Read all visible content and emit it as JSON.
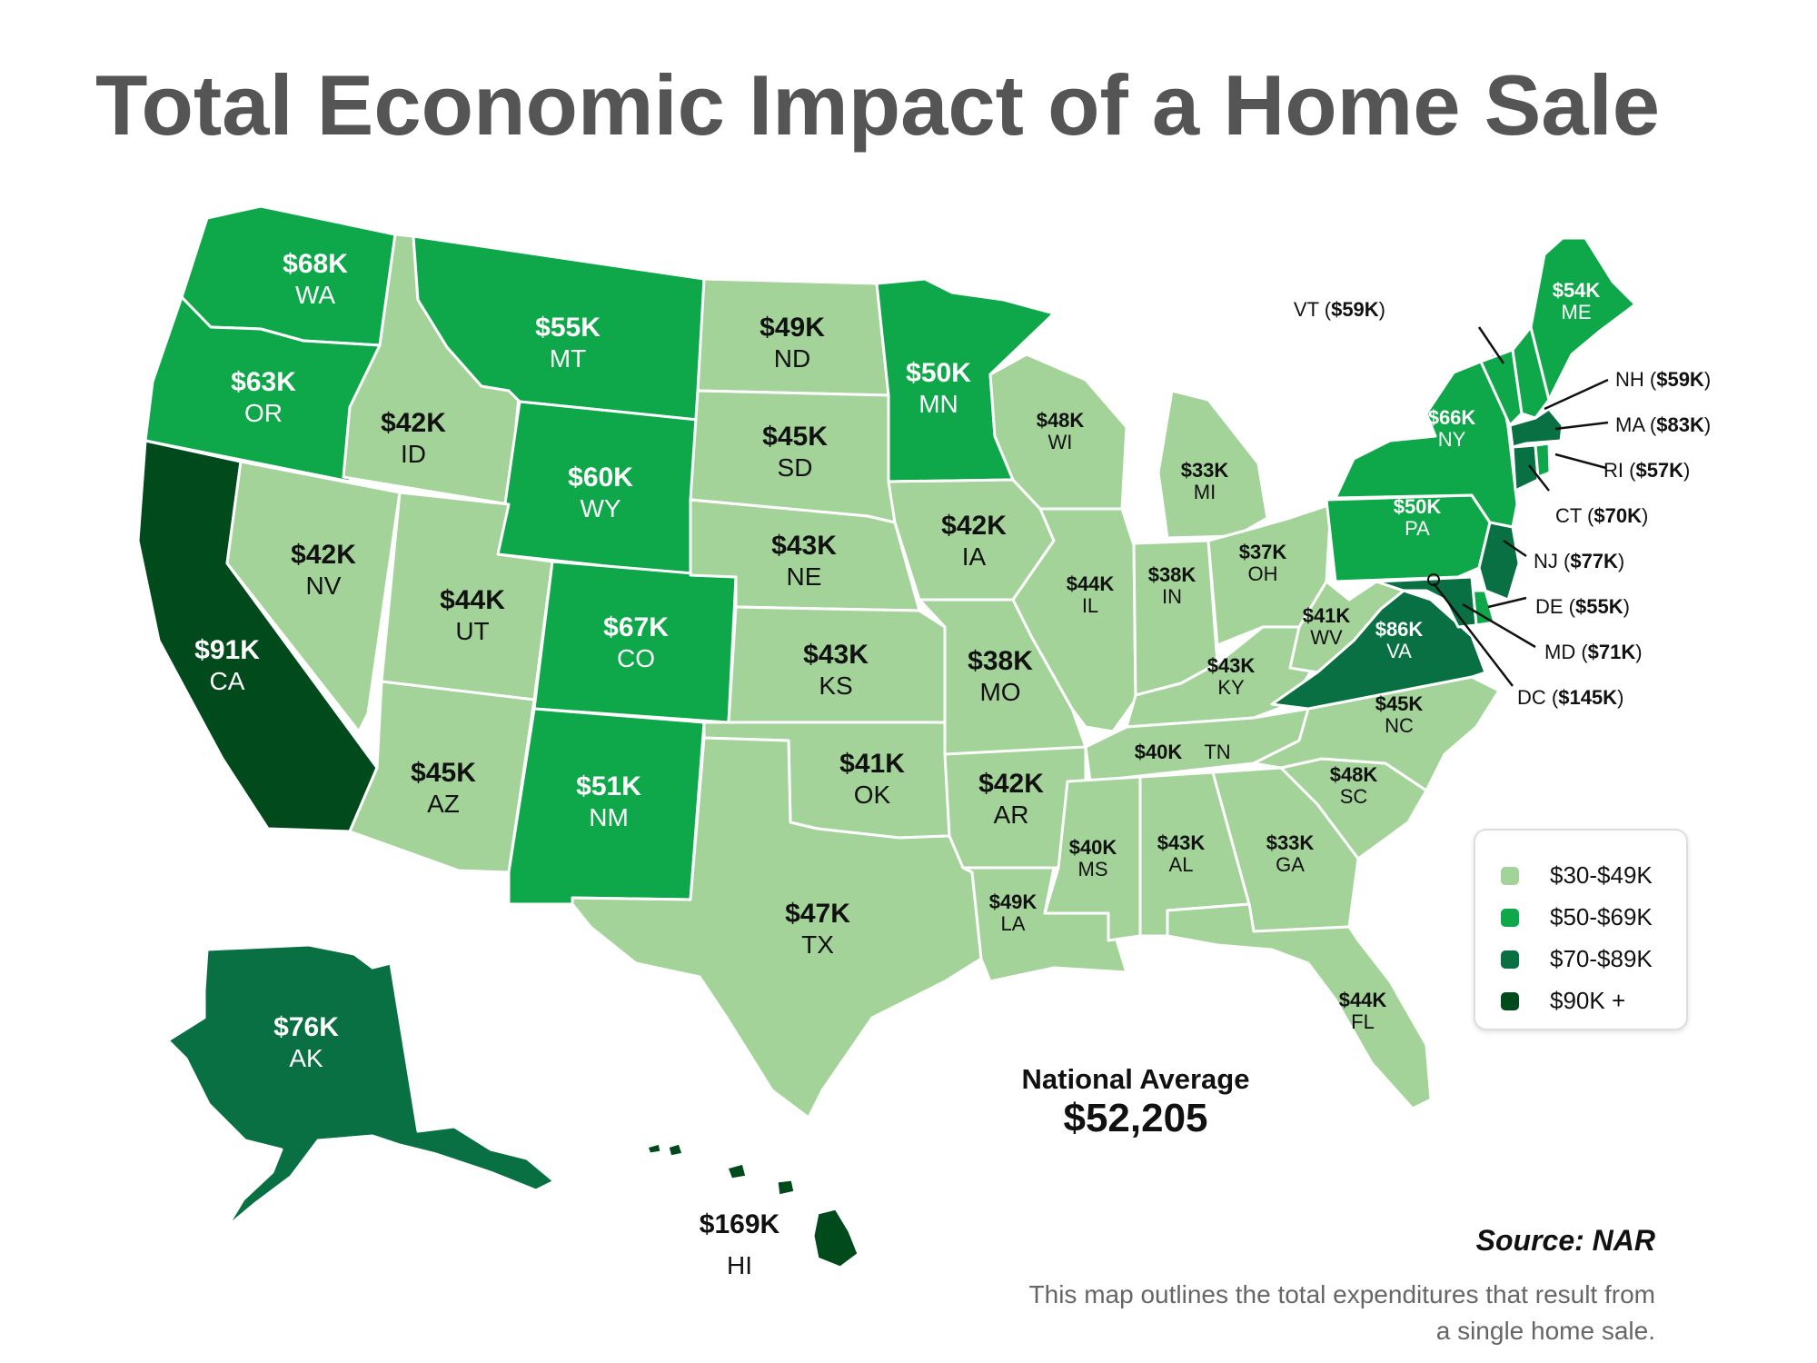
{
  "title": "Total Economic Impact of a Home Sale",
  "colors": {
    "tier1": "#a3d398",
    "tier2": "#0ea84a",
    "tier3": "#087042",
    "tier4": "#004a1c"
  },
  "states": [
    {
      "abbr": "WA",
      "value": "$68K",
      "tier": 2
    },
    {
      "abbr": "OR",
      "value": "$63K",
      "tier": 2
    },
    {
      "abbr": "CA",
      "value": "$91K",
      "tier": 4
    },
    {
      "abbr": "ID",
      "value": "$42K",
      "tier": 1
    },
    {
      "abbr": "NV",
      "value": "$42K",
      "tier": 1
    },
    {
      "abbr": "MT",
      "value": "$55K",
      "tier": 2
    },
    {
      "abbr": "WY",
      "value": "$60K",
      "tier": 2
    },
    {
      "abbr": "UT",
      "value": "$44K",
      "tier": 1
    },
    {
      "abbr": "AZ",
      "value": "$45K",
      "tier": 1
    },
    {
      "abbr": "CO",
      "value": "$67K",
      "tier": 2
    },
    {
      "abbr": "NM",
      "value": "$51K",
      "tier": 2
    },
    {
      "abbr": "ND",
      "value": "$49K",
      "tier": 1
    },
    {
      "abbr": "SD",
      "value": "$45K",
      "tier": 1
    },
    {
      "abbr": "NE",
      "value": "$43K",
      "tier": 1
    },
    {
      "abbr": "KS",
      "value": "$43K",
      "tier": 1
    },
    {
      "abbr": "OK",
      "value": "$41K",
      "tier": 1
    },
    {
      "abbr": "TX",
      "value": "$47K",
      "tier": 1
    },
    {
      "abbr": "MN",
      "value": "$50K",
      "tier": 2
    },
    {
      "abbr": "IA",
      "value": "$42K",
      "tier": 1
    },
    {
      "abbr": "MO",
      "value": "$38K",
      "tier": 1
    },
    {
      "abbr": "AR",
      "value": "$42K",
      "tier": 1
    },
    {
      "abbr": "LA",
      "value": "$49K",
      "tier": 1
    },
    {
      "abbr": "WI",
      "value": "$48K",
      "tier": 1
    },
    {
      "abbr": "IL",
      "value": "$44K",
      "tier": 1
    },
    {
      "abbr": "MI",
      "value": "$33K",
      "tier": 1
    },
    {
      "abbr": "IN",
      "value": "$38K",
      "tier": 1
    },
    {
      "abbr": "OH",
      "value": "$37K",
      "tier": 1
    },
    {
      "abbr": "KY",
      "value": "$43K",
      "tier": 1
    },
    {
      "abbr": "TN",
      "value": "$40K",
      "tier": 1
    },
    {
      "abbr": "MS",
      "value": "$40K",
      "tier": 1
    },
    {
      "abbr": "AL",
      "value": "$43K",
      "tier": 1
    },
    {
      "abbr": "GA",
      "value": "$33K",
      "tier": 1
    },
    {
      "abbr": "FL",
      "value": "$44K",
      "tier": 1
    },
    {
      "abbr": "SC",
      "value": "$48K",
      "tier": 1
    },
    {
      "abbr": "NC",
      "value": "$45K",
      "tier": 1
    },
    {
      "abbr": "VA",
      "value": "$86K",
      "tier": 3
    },
    {
      "abbr": "WV",
      "value": "$41K",
      "tier": 1
    },
    {
      "abbr": "PA",
      "value": "$50K",
      "tier": 2
    },
    {
      "abbr": "NY",
      "value": "$66K",
      "tier": 2
    },
    {
      "abbr": "ME",
      "value": "$54K",
      "tier": 2
    },
    {
      "abbr": "AK",
      "value": "$76K",
      "tier": 3
    },
    {
      "abbr": "HI",
      "value": "$169K",
      "tier": 4
    },
    {
      "abbr": "VT",
      "value": "$59K",
      "tier": 2
    },
    {
      "abbr": "NH",
      "value": "$59K",
      "tier": 2
    },
    {
      "abbr": "MA",
      "value": "$83K",
      "tier": 3
    },
    {
      "abbr": "RI",
      "value": "$57K",
      "tier": 2
    },
    {
      "abbr": "CT",
      "value": "$70K",
      "tier": 3
    },
    {
      "abbr": "NJ",
      "value": "$77K",
      "tier": 3
    },
    {
      "abbr": "DE",
      "value": "$55K",
      "tier": 2
    },
    {
      "abbr": "MD",
      "value": "$71K",
      "tier": 3
    },
    {
      "abbr": "DC",
      "value": "$145K",
      "tier": 4
    }
  ],
  "legend": [
    {
      "label": "$30-$49K",
      "color": "#a3d398"
    },
    {
      "label": "$50-$69K",
      "color": "#0ea84a"
    },
    {
      "label": "$70-$89K",
      "color": "#087042"
    },
    {
      "label": "$90K +",
      "color": "#004a1c"
    }
  ],
  "national_average": {
    "label": "National Average",
    "value": "$52,205"
  },
  "source": "Source: NAR",
  "note": "This map outlines the total expenditures that result from a single home sale."
}
